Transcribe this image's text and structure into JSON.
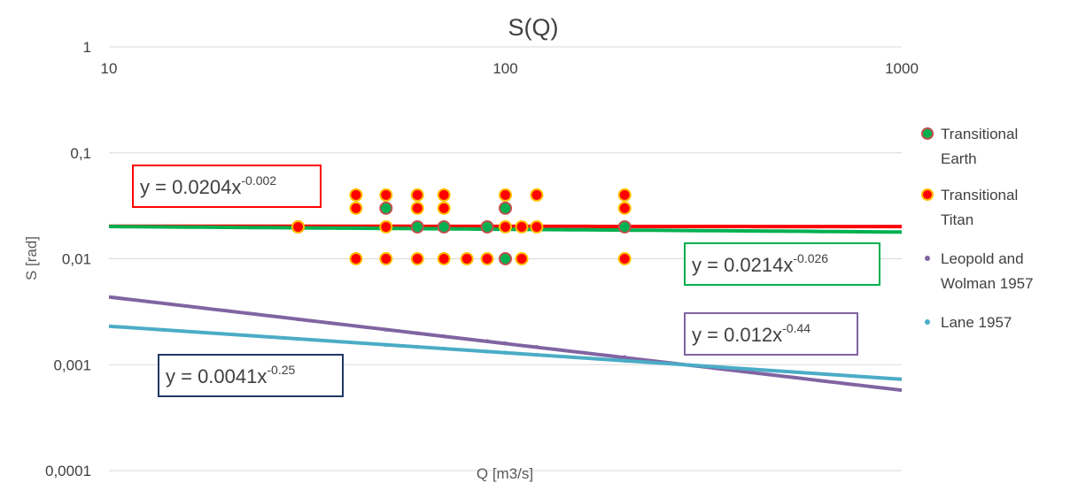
{
  "chart_data": {
    "type": "scatter",
    "title": "S(Q)",
    "xlabel": "Q [m3/s]",
    "ylabel": "S [rad]",
    "x_scale": "log",
    "y_scale": "log",
    "xlim": [
      10,
      1000
    ],
    "ylim": [
      0.0001,
      1
    ],
    "x_ticks": [
      "10",
      "100",
      "1000"
    ],
    "y_ticks": [
      "1",
      "0,1",
      "0,01",
      "0,001",
      "0,0001"
    ],
    "gridlines": "horizontal",
    "legend_position": "right",
    "series": [
      {
        "name": "Transitional Earth",
        "name_lines": [
          "Transitional",
          "Earth"
        ],
        "marker": "circle",
        "color": "#00B050",
        "edge_color": "#C0504D",
        "points": [
          [
            30,
            0.02
          ],
          [
            50,
            0.03
          ],
          [
            60,
            0.02
          ],
          [
            70,
            0.02
          ],
          [
            90,
            0.02
          ],
          [
            100,
            0.03
          ],
          [
            100,
            0.01
          ],
          [
            200,
            0.02
          ]
        ]
      },
      {
        "name": "Transitional Titan",
        "name_lines": [
          "Transitional",
          "Titan"
        ],
        "marker": "circle",
        "color": "#FF0000",
        "edge_color": "#FFC000",
        "points": [
          [
            30,
            0.02
          ],
          [
            42,
            0.04
          ],
          [
            42,
            0.03
          ],
          [
            42,
            0.01
          ],
          [
            50,
            0.04
          ],
          [
            50,
            0.02
          ],
          [
            50,
            0.01
          ],
          [
            60,
            0.04
          ],
          [
            60,
            0.03
          ],
          [
            60,
            0.01
          ],
          [
            70,
            0.04
          ],
          [
            70,
            0.03
          ],
          [
            70,
            0.01
          ],
          [
            80,
            0.01
          ],
          [
            90,
            0.01
          ],
          [
            100,
            0.04
          ],
          [
            100,
            0.02
          ],
          [
            110,
            0.02
          ],
          [
            110,
            0.01
          ],
          [
            120,
            0.04
          ],
          [
            120,
            0.02
          ],
          [
            200,
            0.04
          ],
          [
            200,
            0.03
          ],
          [
            200,
            0.01
          ]
        ]
      },
      {
        "name": "Leopold and Wolman 1957",
        "name_lines": [
          "Leopold and",
          "Wolman 1957"
        ],
        "marker": "line",
        "color": "#8064A2",
        "points": [
          [
            30,
            0.00268
          ],
          [
            50,
            0.00214
          ],
          [
            60,
            0.00198
          ],
          [
            70,
            0.00185
          ],
          [
            90,
            0.00167
          ],
          [
            100,
            0.00159
          ],
          [
            120,
            0.00147
          ],
          [
            200,
            0.00118
          ]
        ]
      },
      {
        "name": "Lane 1957",
        "name_lines": [
          "Lane 1957"
        ],
        "marker": "line",
        "color": "#4BACC6",
        "points": [
          [
            30,
            0.00175
          ],
          [
            50,
            0.00154
          ],
          [
            60,
            0.00147
          ],
          [
            70,
            0.00142
          ],
          [
            90,
            0.00133
          ],
          [
            100,
            0.0013
          ],
          [
            120,
            0.00124
          ],
          [
            200,
            0.00109
          ]
        ]
      }
    ],
    "trendlines": [
      {
        "series": "Transitional Titan",
        "coef": 0.0204,
        "exp": -0.002,
        "equation": "y = 0.0204x",
        "exp_label": "-0.002",
        "color": "#FF0000",
        "box_color": "#FF0000"
      },
      {
        "series": "Transitional Earth",
        "coef": 0.0214,
        "exp": -0.026,
        "equation": "y = 0.0214x",
        "exp_label": "-0.026",
        "color": "#00B050",
        "box_color": "#00B050"
      },
      {
        "series": "Leopold and Wolman 1957",
        "coef": 0.012,
        "exp": -0.44,
        "equation": "y = 0.012x",
        "exp_label": "-0.44",
        "color": "#8064A2",
        "box_color": "#8064A2"
      },
      {
        "series": "Lane 1957",
        "coef": 0.0041,
        "exp": -0.25,
        "equation": "y = 0.0041x",
        "exp_label": "-0.25",
        "color": "#4BACC6",
        "box_color": "#1F3864"
      }
    ]
  }
}
